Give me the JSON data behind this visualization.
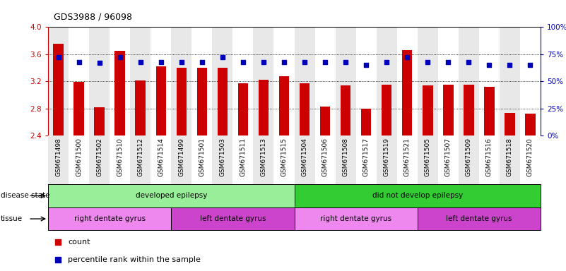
{
  "title": "GDS3988 / 96098",
  "samples": [
    "GSM671498",
    "GSM671500",
    "GSM671502",
    "GSM671510",
    "GSM671512",
    "GSM671514",
    "GSM671499",
    "GSM671501",
    "GSM671503",
    "GSM671511",
    "GSM671513",
    "GSM671515",
    "GSM671504",
    "GSM671506",
    "GSM671508",
    "GSM671517",
    "GSM671519",
    "GSM671521",
    "GSM671505",
    "GSM671507",
    "GSM671509",
    "GSM671516",
    "GSM671518",
    "GSM671520"
  ],
  "bar_values": [
    3.75,
    3.19,
    2.82,
    3.65,
    3.21,
    3.42,
    3.4,
    3.4,
    3.4,
    3.17,
    3.22,
    3.27,
    3.17,
    2.83,
    3.14,
    2.8,
    3.15,
    3.66,
    3.14,
    3.15,
    3.15,
    3.12,
    2.73,
    2.72
  ],
  "dot_values": [
    72,
    68,
    67,
    72,
    68,
    68,
    68,
    68,
    72,
    68,
    68,
    68,
    68,
    68,
    68,
    65,
    68,
    72,
    68,
    68,
    68,
    65,
    65,
    65
  ],
  "ylim_left": [
    2.4,
    4.0
  ],
  "ylim_right": [
    0,
    100
  ],
  "yticks_left": [
    2.4,
    2.8,
    3.2,
    3.6,
    4.0
  ],
  "yticks_right": [
    0,
    25,
    50,
    75,
    100
  ],
  "ytick_labels_right": [
    "0%",
    "25%",
    "50%",
    "75%",
    "100%"
  ],
  "bar_color": "#cc0000",
  "dot_color": "#0000bb",
  "grid_color": "#000000",
  "disease_state_groups": [
    {
      "label": "developed epilepsy",
      "start": 0,
      "end": 12,
      "color": "#99ee99"
    },
    {
      "label": "did not develop epilepsy",
      "start": 12,
      "end": 24,
      "color": "#33cc33"
    }
  ],
  "tissue_groups": [
    {
      "label": "right dentate gyrus",
      "start": 0,
      "end": 6,
      "color": "#ee88ee"
    },
    {
      "label": "left dentate gyrus",
      "start": 6,
      "end": 12,
      "color": "#cc44cc"
    },
    {
      "label": "right dentate gyrus",
      "start": 12,
      "end": 18,
      "color": "#ee88ee"
    },
    {
      "label": "left dentate gyrus",
      "start": 18,
      "end": 24,
      "color": "#cc44cc"
    }
  ],
  "legend_count_label": "count",
  "legend_pct_label": "percentile rank within the sample",
  "disease_state_label": "disease state",
  "tissue_label": "tissue",
  "col_bg_even": "#e8e8e8",
  "col_bg_odd": "#ffffff"
}
